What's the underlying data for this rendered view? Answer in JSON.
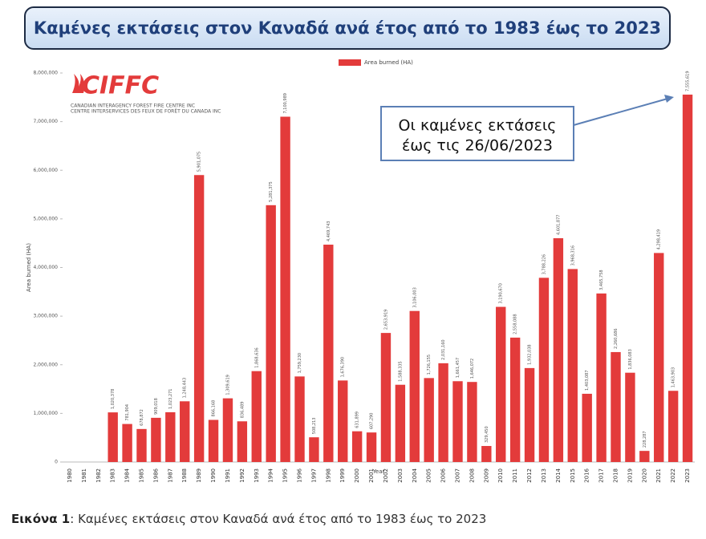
{
  "banner_title": "Καμένες εκτάσεις στον Καναδά ανά έτος από το 1983 έως το 2023",
  "caption": {
    "label": "Εικόνα 1",
    "text": ": Καμένες εκτάσεις στον Καναδά ανά έτος από το 1983 έως το 2023"
  },
  "logo": {
    "text": "CIFFC",
    "line1": "CANADIAN INTERAGENCY FOREST FIRE CENTRE INC",
    "line2": "CENTRE INTERSERVICES DES FEUX DE FORÊT DU CANADA INC"
  },
  "chart_data": {
    "type": "bar",
    "y_label": "Area burned (HA)",
    "x_label": "Year",
    "annotation": [
      "Οι καμένες εκτάσεις",
      "έως τις 26/06/2023"
    ],
    "categories": [
      "1980",
      "1981",
      "1982",
      "1983",
      "1984",
      "1985",
      "1986",
      "1987",
      "1988",
      "1989",
      "1990",
      "1991",
      "1992",
      "1993",
      "1994",
      "1995",
      "1996",
      "1997",
      "1998",
      "1999",
      "2000",
      "2001",
      "2002",
      "2003",
      "2004",
      "2005",
      "2006",
      "2007",
      "2008",
      "2009",
      "2010",
      "2011",
      "2012",
      "2013",
      "2014",
      "2015",
      "2016",
      "2017",
      "2018",
      "2019",
      "2020",
      "2021",
      "2022",
      "2023"
    ],
    "series": [
      {
        "name": "Area burned (HA)",
        "color": "#e33b3b",
        "values": [
          null,
          null,
          null,
          1020378,
          781904,
          678872,
          909018,
          1023271,
          1248443,
          5901075,
          866168,
          1309619,
          836489,
          1868636,
          5281375,
          7100989,
          1759230,
          508213,
          4469743,
          1676390,
          631899,
          607290,
          2653919,
          1588335,
          3106003,
          1726155,
          2031160,
          1661457,
          1646072,
          329450,
          3190670,
          2558088,
          1932038,
          3788226,
          4601877,
          3968316,
          1403087,
          3465758,
          2260686,
          1836083,
          228287,
          4298419,
          1463903,
          7555619
        ],
        "value_labels": [
          null,
          null,
          null,
          "1,020,378",
          "781,904",
          "678,872",
          "909,018",
          "1,023,271",
          "1,248,443",
          "5,901,075",
          "866,168",
          "1,309,619",
          "836,489",
          "1,868,636",
          "5,281,375",
          "7,100,989",
          "1,759,230",
          "508,213",
          "4,469,743",
          "1,676,390",
          "631,899",
          "607,290",
          "2,653,919",
          "1,588,335",
          "3,106,003",
          "1,726,155",
          "2,031,160",
          "1,661,457",
          "1,646,072",
          "329,450",
          "3,190,670",
          "2,558,088",
          "1,932,038",
          "3,788,226",
          "4,601,877",
          "3,968,316",
          "1,403,087",
          "3,465,758",
          "2,260,686",
          "1,836,083",
          "228,287",
          "4,298,419",
          "1,463,903",
          "7,555,619"
        ]
      }
    ],
    "ylim": [
      0,
      8000000
    ],
    "yticks": [
      0,
      {
        "value": 1000000,
        "label": "1,000,000"
      },
      {
        "value": 2000000,
        "label": "2,000,000"
      },
      {
        "value": 3000000,
        "label": "3,000,000"
      },
      {
        "value": 4000000,
        "label": "4,000,000"
      },
      {
        "value": 5000000,
        "label": "5,000,000"
      },
      {
        "value": 6000000,
        "label": "6,000,000"
      },
      {
        "value": 7000000,
        "label": "7,000,000"
      },
      {
        "value": 8000000,
        "label": "8,000,000"
      }
    ],
    "grid": false,
    "legend": "top"
  }
}
